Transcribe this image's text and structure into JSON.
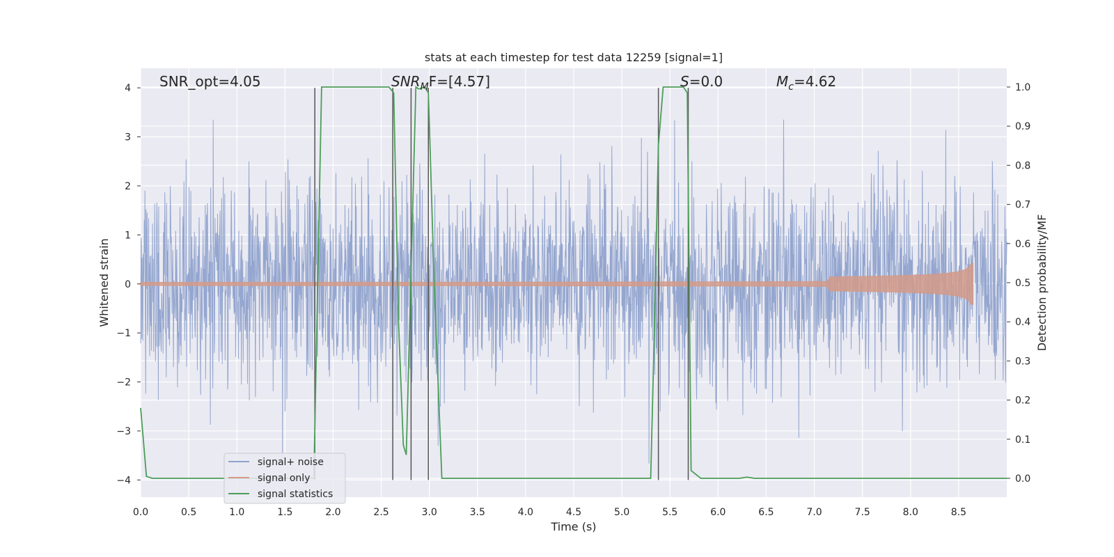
{
  "chart_data": {
    "type": "line",
    "title": "stats at each timestep for test data 12259 [signal=1]",
    "xlabel": "Time (s)",
    "ylabel": "Whitened strain",
    "ylabel_right": "Detection probability/MF",
    "xlim": [
      0.0,
      9.0
    ],
    "ylim": [
      -4.35,
      4.4
    ],
    "ylim_right": [
      -0.048,
      1.048
    ],
    "x_ticks": [
      "0.0",
      "0.5",
      "1.0",
      "1.5",
      "2.0",
      "2.5",
      "3.0",
      "3.5",
      "4.0",
      "4.5",
      "5.0",
      "5.5",
      "6.0",
      "6.5",
      "7.0",
      "7.5",
      "8.0",
      "8.5"
    ],
    "y_ticks": [
      "−4",
      "−3",
      "−2",
      "−1",
      "0",
      "1",
      "2",
      "3",
      "4"
    ],
    "y_ticks_right": [
      "0.0",
      "0.1",
      "0.2",
      "0.3",
      "0.4",
      "0.5",
      "0.6",
      "0.7",
      "0.8",
      "0.9",
      "1.0"
    ],
    "grid": true,
    "legend_position": "lower-left",
    "annotations": {
      "snr_opt": "SNR_opt=4.05",
      "snr_mf_base": "SNR",
      "snr_mf_sub": "M",
      "snr_mf_rest": "F=[4.57]",
      "s_italic": "S",
      "s_rest": "=0.0",
      "mc_base": "M",
      "mc_sub": "c",
      "mc_rest": "=4.62"
    },
    "vertical_lines_x": [
      1.81,
      2.62,
      2.81,
      2.99,
      5.38,
      5.69
    ],
    "series": [
      {
        "name": "signal+ noise",
        "color": "#8fa2cc",
        "noise_envelope_sigma": 0.8,
        "noise_max": 3.35,
        "noise_min": -4.0,
        "x_range": [
          0.0,
          9.0
        ]
      },
      {
        "name": "signal only",
        "color": "#d49a88",
        "chirp": {
          "t_start": 0.0,
          "t_end": 8.65,
          "end_amplitude": 0.42
        }
      },
      {
        "name": "signal statistics",
        "color": "#4b9e58",
        "axis": "right",
        "x": [
          0.0,
          0.06,
          0.12,
          1.8,
          1.84,
          1.88,
          2.53,
          2.58,
          2.63,
          2.68,
          2.73,
          2.76,
          2.86,
          2.89,
          2.95,
          2.99,
          3.05,
          3.13,
          5.3,
          5.34,
          5.38,
          5.43,
          5.64,
          5.68,
          5.72,
          5.82,
          6.22,
          6.3,
          6.38,
          9.0
        ],
        "y": [
          0.18,
          0.005,
          0.0,
          0.0,
          0.5,
          1.0,
          1.0,
          1.0,
          0.985,
          0.4,
          0.085,
          0.06,
          1.0,
          0.995,
          1.0,
          0.985,
          0.5,
          0.0,
          0.0,
          0.4,
          0.85,
          1.0,
          1.0,
          0.985,
          0.02,
          0.0,
          0.0,
          0.003,
          0.0,
          0.0
        ]
      }
    ]
  }
}
